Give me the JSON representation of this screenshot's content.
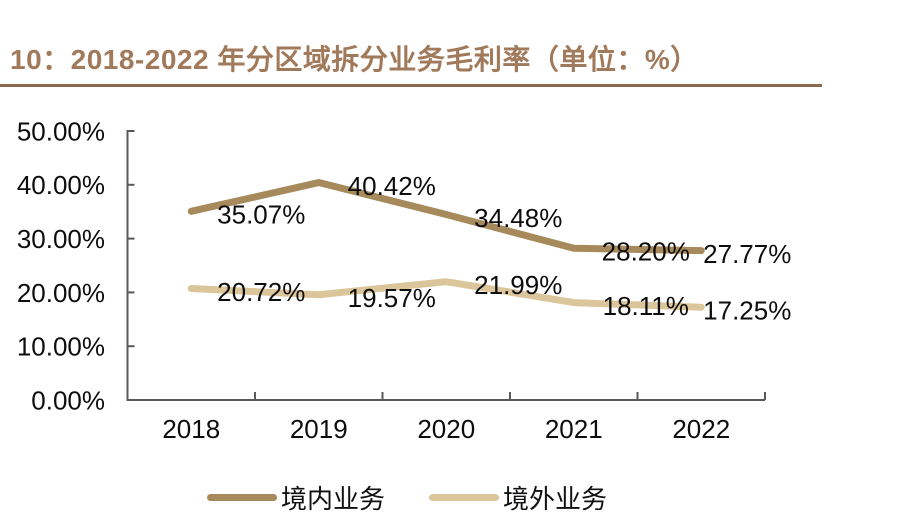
{
  "title": "10：2018-2022 年分区域拆分业务毛利率（单位：%）",
  "colors": {
    "title": "#A17A5B",
    "rule": "#8D6A4E",
    "axis": "#595959",
    "text": "#0D0D0D",
    "domestic": "#A78A5C",
    "overseas": "#DBC69C"
  },
  "chart_data": {
    "type": "line",
    "title": "10：2018-2022 年分区域拆分业务毛利率（单位：%）",
    "categories": [
      "2018",
      "2019",
      "2020",
      "2021",
      "2022"
    ],
    "series": [
      {
        "name": "境内业务",
        "color_key": "domestic",
        "values": [
          35.07,
          40.42,
          34.48,
          28.2,
          27.77
        ],
        "point_labels": [
          "35.07%",
          "40.42%",
          "34.48%",
          "28.20%",
          "27.77%"
        ]
      },
      {
        "name": "境外业务",
        "color_key": "overseas",
        "values": [
          20.72,
          19.57,
          21.99,
          18.11,
          17.25
        ],
        "point_labels": [
          "20.72%",
          "19.57%",
          "21.99%",
          "18.11%",
          "17.25%"
        ]
      }
    ],
    "y_ticks": [
      {
        "value": 0,
        "label": "0.00%"
      },
      {
        "value": 10,
        "label": "10.00%"
      },
      {
        "value": 20,
        "label": "20.00%"
      },
      {
        "value": 30,
        "label": "30.00%"
      },
      {
        "value": 40,
        "label": "40.00%"
      },
      {
        "value": 50,
        "label": "50.00%"
      }
    ],
    "ylim": [
      0,
      50
    ],
    "grid": false,
    "legend_position": "bottom"
  }
}
